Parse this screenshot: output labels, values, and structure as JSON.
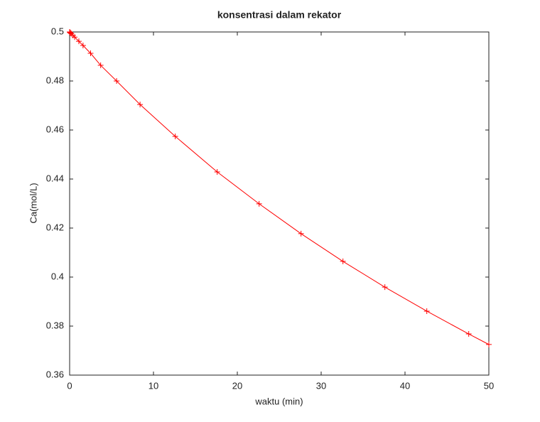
{
  "chart_data": {
    "type": "line",
    "title": "konsentrasi dalam rekator",
    "x_label": "waktu (min)",
    "y_label": "Ca(mol/L)",
    "x": [
      0,
      0.05,
      0.1,
      0.2,
      0.4,
      0.6,
      1.1,
      1.6,
      2.5,
      3.7,
      5.6,
      8.4,
      12.6,
      17.6,
      22.6,
      27.6,
      32.6,
      37.6,
      42.6,
      47.6,
      50
    ],
    "series": [
      {
        "name": "Ca",
        "color": "#ff0000",
        "values": [
          0.5,
          0.4998,
          0.4996,
          0.4993,
          0.4986,
          0.4979,
          0.4962,
          0.4945,
          0.4913,
          0.4864,
          0.48,
          0.4704,
          0.4574,
          0.4429,
          0.4299,
          0.4177,
          0.4064,
          0.3959,
          0.3861,
          0.3768,
          0.3725
        ]
      }
    ],
    "xlim": [
      0,
      50
    ],
    "ylim": [
      0.36,
      0.5
    ],
    "xticks": [
      0,
      10,
      20,
      30,
      40,
      50
    ],
    "yticks": [
      0.36,
      0.38,
      0.4,
      0.42,
      0.44,
      0.46,
      0.48,
      0.5
    ]
  }
}
